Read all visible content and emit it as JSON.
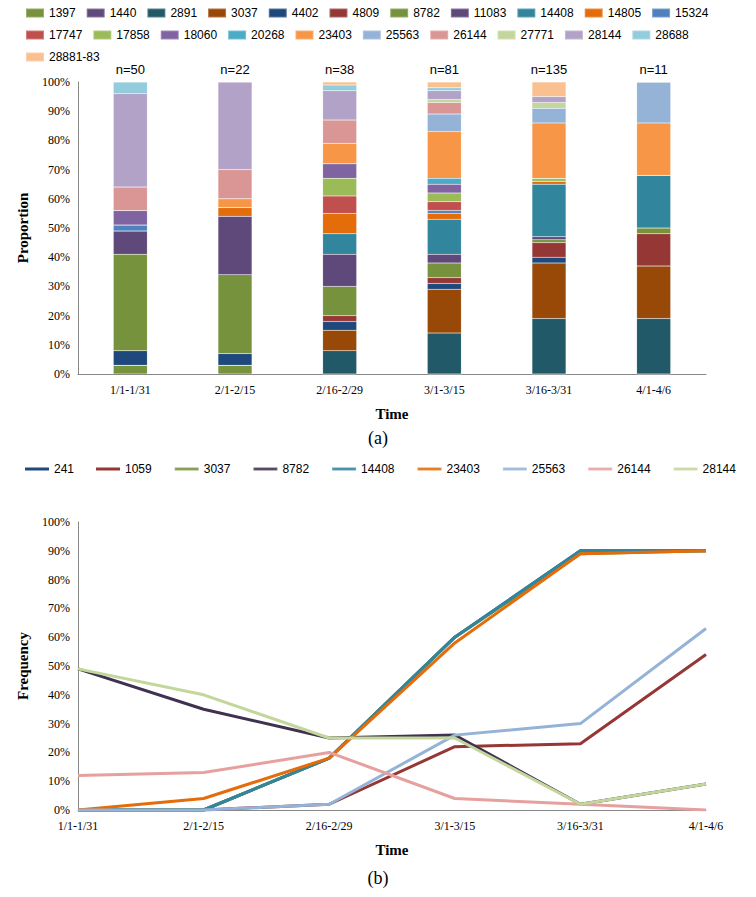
{
  "chart_data": [
    {
      "type": "bar",
      "title": "(a)",
      "x_label": "Time",
      "y_label": "Proportion",
      "stacked": true,
      "grid": false,
      "legend": "top",
      "categories": [
        "1/1-1/31",
        "2/1-2/15",
        "2/16-2/29",
        "3/1-3/15",
        "3/16-3/31",
        "4/1-4/6"
      ],
      "annotations": [
        "n=50",
        "n=22",
        "n=38",
        "n=81",
        "n=135",
        "n=11"
      ],
      "ylim": [
        0,
        100
      ],
      "yticks": [
        {
          "value": 0,
          "label": "0%"
        },
        {
          "value": 10,
          "label": "10%"
        },
        {
          "value": 20,
          "label": "20%"
        },
        {
          "value": 30,
          "label": "30%"
        },
        {
          "value": 40,
          "label": "40%"
        },
        {
          "value": 50,
          "label": "50%"
        },
        {
          "value": 60,
          "label": "60%"
        },
        {
          "value": 70,
          "label": "70%"
        },
        {
          "value": 80,
          "label": "80%"
        },
        {
          "value": 90,
          "label": "90%"
        },
        {
          "value": 100,
          "label": "100%"
        }
      ],
      "series": [
        {
          "name": "1397",
          "color": "#77933c",
          "values": [
            3,
            3,
            0,
            0,
            0,
            0
          ]
        },
        {
          "name": "1440",
          "color": "#604a7b",
          "values": [
            0,
            0,
            0,
            0,
            0,
            0
          ]
        },
        {
          "name": "2891",
          "color": "#215968",
          "values": [
            0,
            0,
            8,
            14,
            19,
            19
          ]
        },
        {
          "name": "3037",
          "color": "#984807",
          "values": [
            0,
            0,
            7,
            15,
            19,
            18
          ]
        },
        {
          "name": "4402",
          "color": "#1f497d",
          "values": [
            5,
            4,
            3,
            2,
            2,
            0
          ]
        },
        {
          "name": "4809",
          "color": "#953735",
          "values": [
            0,
            0,
            2,
            2,
            5,
            11
          ]
        },
        {
          "name": "8782",
          "color": "#76923c",
          "values": [
            33,
            27,
            10,
            5,
            1,
            2
          ]
        },
        {
          "name": "11083",
          "color": "#5f497a",
          "values": [
            8,
            20,
            11,
            3,
            1,
            0
          ]
        },
        {
          "name": "14408",
          "color": "#31859c",
          "values": [
            0,
            0,
            7,
            12,
            18,
            18
          ]
        },
        {
          "name": "14805",
          "color": "#e46c0a",
          "values": [
            0,
            3,
            7,
            2,
            1,
            0
          ]
        },
        {
          "name": "15324",
          "color": "#4f81bd",
          "values": [
            2,
            0,
            0,
            1,
            0,
            0
          ]
        },
        {
          "name": "17747",
          "color": "#c0504d",
          "values": [
            0,
            0,
            6,
            3,
            0,
            0
          ]
        },
        {
          "name": "17858",
          "color": "#9bbb59",
          "values": [
            0,
            0,
            6,
            3,
            1,
            0
          ]
        },
        {
          "name": "18060",
          "color": "#8064a2",
          "values": [
            5,
            0,
            5,
            3,
            0,
            0
          ]
        },
        {
          "name": "20268",
          "color": "#4bacc6",
          "values": [
            0,
            0,
            0,
            2,
            0,
            0
          ]
        },
        {
          "name": "23403",
          "color": "#f79646",
          "values": [
            0,
            3,
            7,
            16,
            19,
            18
          ]
        },
        {
          "name": "25563",
          "color": "#95b3d7",
          "values": [
            0,
            0,
            0,
            6,
            5,
            14
          ]
        },
        {
          "name": "26144",
          "color": "#d99694",
          "values": [
            8,
            10,
            8,
            4,
            0,
            0
          ]
        },
        {
          "name": "27771",
          "color": "#c3d69b",
          "values": [
            0,
            0,
            0,
            1,
            2,
            0
          ]
        },
        {
          "name": "28144",
          "color": "#b3a2c7",
          "values": [
            32,
            30,
            10,
            3,
            2,
            0
          ]
        },
        {
          "name": "28688",
          "color": "#93cddd",
          "values": [
            4,
            0,
            2,
            1,
            0,
            0
          ]
        },
        {
          "name": "28881-83",
          "color": "#fac090",
          "values": [
            0,
            0,
            1,
            2,
            5,
            0
          ]
        }
      ]
    },
    {
      "type": "line",
      "title": "(b)",
      "x_label": "Time",
      "y_label": "Frequency",
      "grid": false,
      "legend": "top",
      "categories": [
        "1/1-1/31",
        "2/1-2/15",
        "2/16-2/29",
        "3/1-3/15",
        "3/16-3/31",
        "4/1-4/6"
      ],
      "ylim": [
        0,
        100
      ],
      "yticks": [
        {
          "value": 0,
          "label": "0%"
        },
        {
          "value": 10,
          "label": "10%"
        },
        {
          "value": 20,
          "label": "20%"
        },
        {
          "value": 30,
          "label": "30%"
        },
        {
          "value": 40,
          "label": "40%"
        },
        {
          "value": 50,
          "label": "50%"
        },
        {
          "value": 60,
          "label": "60%"
        },
        {
          "value": 70,
          "label": "70%"
        },
        {
          "value": 80,
          "label": "80%"
        },
        {
          "value": 90,
          "label": "90%"
        },
        {
          "value": 100,
          "label": "100%"
        }
      ],
      "series": [
        {
          "name": "241",
          "color": "#1f497d",
          "values": [
            0,
            0,
            18,
            60,
            90,
            90
          ]
        },
        {
          "name": "1059",
          "color": "#953735",
          "values": [
            0,
            0,
            2,
            22,
            23,
            54
          ]
        },
        {
          "name": "3037",
          "color": "#77933c",
          "values": [
            0,
            0,
            18,
            60,
            89,
            90
          ]
        },
        {
          "name": "8782",
          "color": "#403151",
          "values": [
            49,
            35,
            25,
            26,
            2,
            9
          ]
        },
        {
          "name": "14408",
          "color": "#31859c",
          "values": [
            0,
            0,
            18,
            60,
            90,
            90
          ]
        },
        {
          "name": "23403",
          "color": "#e46c0a",
          "values": [
            0,
            4,
            18,
            58,
            89,
            90
          ]
        },
        {
          "name": "25563",
          "color": "#95b3d7",
          "values": [
            0,
            0,
            2,
            26,
            30,
            63
          ]
        },
        {
          "name": "26144",
          "color": "#e6a09e",
          "values": [
            12,
            13,
            20,
            4,
            2,
            0
          ]
        },
        {
          "name": "28144",
          "color": "#c3d69b",
          "values": [
            49,
            40,
            25,
            25,
            2,
            9
          ]
        }
      ]
    }
  ]
}
